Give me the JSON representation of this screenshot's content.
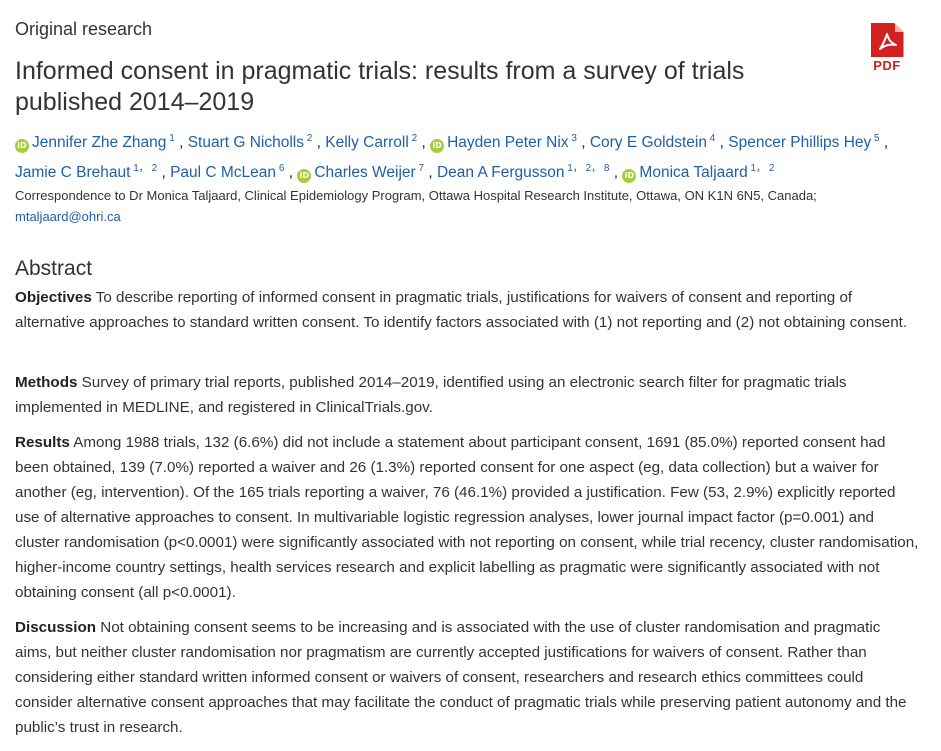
{
  "header": {
    "section_label": "Original research",
    "title": "Informed consent in pragmatic trials: results from a survey of trials published 2014–2019",
    "pdf_label": "PDF"
  },
  "authors": [
    {
      "name": "Jennifer Zhe Zhang",
      "sup": "1",
      "orcid": true
    },
    {
      "name": "Stuart G Nicholls",
      "sup": "2",
      "orcid": false
    },
    {
      "name": "Kelly Carroll",
      "sup": "2",
      "orcid": false
    },
    {
      "name": "Hayden Peter Nix",
      "sup": "3",
      "orcid": true
    },
    {
      "name": "Cory E Goldstein",
      "sup": "4",
      "orcid": false
    },
    {
      "name": "Spencer Phillips Hey",
      "sup": "5",
      "orcid": false
    },
    {
      "name": "Jamie C Brehaut",
      "sup": "1， 2",
      "orcid": false
    },
    {
      "name": "Paul C McLean",
      "sup": "6",
      "orcid": false
    },
    {
      "name": "Charles Weijer",
      "sup": "7",
      "orcid": true
    },
    {
      "name": "Dean A Fergusson",
      "sup": "1， 2， 8",
      "orcid": false
    },
    {
      "name": "Monica Taljaard",
      "sup": "1， 2",
      "orcid": true
    }
  ],
  "correspondence": "Correspondence to Dr Monica Taljaard, Clinical Epidemiology Program, Ottawa Hospital Research Institute, Ottawa, ON K1N 6N5, Canada;",
  "email": "mtaljaard@ohri.ca",
  "abstract": {
    "heading": "Abstract",
    "objectives_label": "Objectives",
    "objectives_text": " To describe reporting of informed consent in pragmatic trials, justifications for waivers of consent and reporting of alternative approaches to standard written consent. To identify factors associated with (1) not reporting and (2) not obtaining consent.",
    "methods_label": "Methods",
    "methods_text": " Survey of primary trial reports, published 2014–2019, identified using an electronic search filter for pragmatic trials implemented in MEDLINE, and registered in ClinicalTrials.gov.",
    "results_label": "Results",
    "results_text": " Among 1988 trials, 132 (6.6%) did not include a statement about participant consent, 1691 (85.0%) reported consent had been obtained, 139 (7.0%) reported a waiver and 26 (1.3%) reported consent for one aspect (eg, data collection) but a waiver for another (eg, intervention). Of the 165 trials reporting a waiver, 76 (46.1%) provided a justification. Few (53, 2.9%) explicitly reported use of alternative approaches to consent. In multivariable logistic regression analyses, lower journal impact factor (p=0.001) and cluster randomisation (p<0.0001) were significantly associated with not reporting on consent, while trial recency, cluster randomisation, higher-income country settings, health services research and explicit labelling as pragmatic were significantly associated with not obtaining consent (all p<0.0001).",
    "discussion_label": "Discussion",
    "discussion_text": " Not obtaining consent seems to be increasing and is associated with the use of cluster randomisation and pragmatic aims, but neither cluster randomisation nor pragmatism are currently accepted justifications for waivers of consent. Rather than considering either standard written informed consent or waivers of consent, researchers and research ethics committees could consider alternative consent approaches that may facilitate the conduct of pragmatic trials while preserving patient autonomy and the public’s trust in research."
  },
  "colors": {
    "link": "#1f5fa8",
    "orcid": "#a6ce39",
    "pdf": "#d32020"
  }
}
